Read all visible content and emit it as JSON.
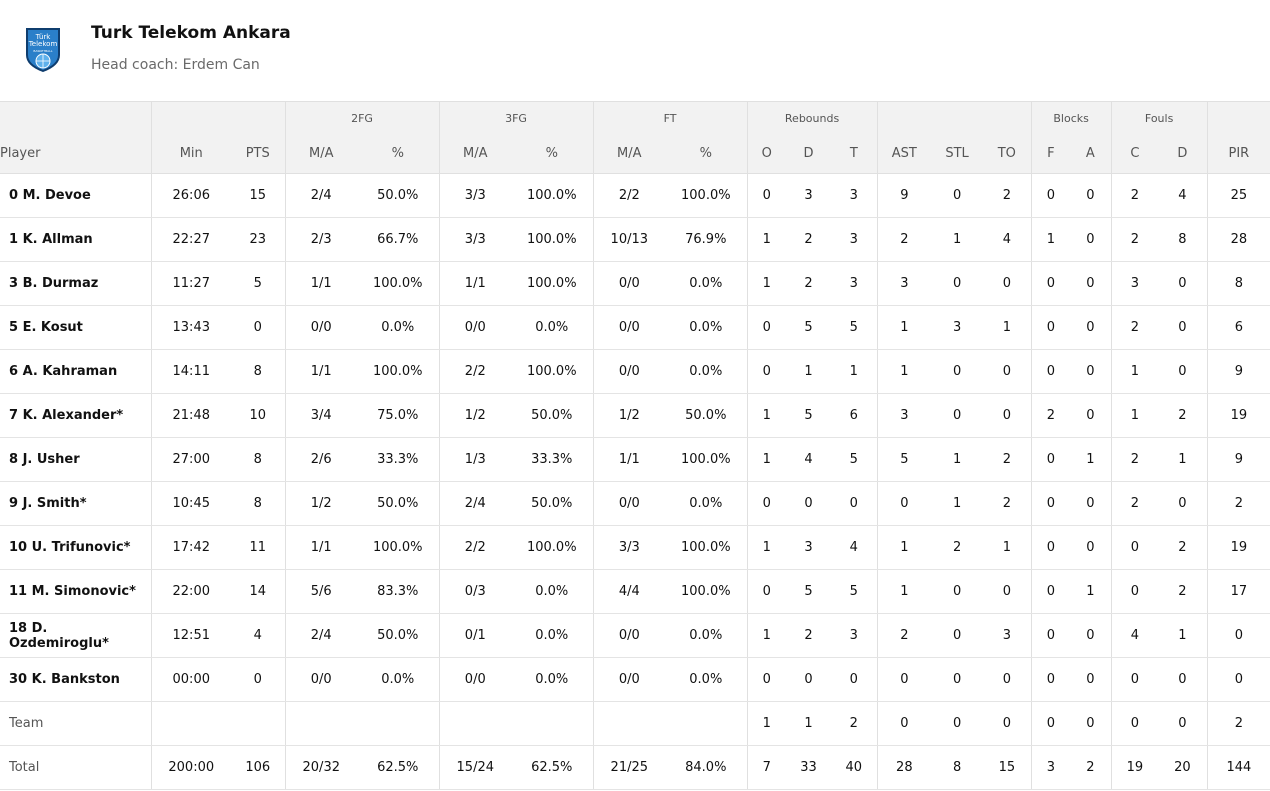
{
  "team": {
    "name": "Turk Telekom Ankara",
    "coach": "Head coach: Erdem Can",
    "logo_text_1": "Türk",
    "logo_text_2": "Telekom",
    "logo_text_3": "BASKETBALL"
  },
  "colors": {
    "header_bg": "#f2f2f2",
    "border": "#e0e0e0",
    "logo_blue": "#2a7fc9",
    "logo_dark": "#0f3d6e"
  },
  "groups": [
    "",
    "",
    "2FG",
    "3FG",
    "FT",
    "Rebounds",
    "",
    "Blocks",
    "Fouls",
    ""
  ],
  "columns": [
    "Player",
    "Min",
    "PTS",
    "M/A",
    "%",
    "M/A",
    "%",
    "M/A",
    "%",
    "O",
    "D",
    "T",
    "AST",
    "STL",
    "TO",
    "F",
    "A",
    "C",
    "D",
    "PIR"
  ],
  "rows": [
    [
      "0 M. Devoe",
      "26:06",
      "15",
      "2/4",
      "50.0%",
      "3/3",
      "100.0%",
      "2/2",
      "100.0%",
      "0",
      "3",
      "3",
      "9",
      "0",
      "2",
      "0",
      "0",
      "2",
      "4",
      "25"
    ],
    [
      "1 K. Allman",
      "22:27",
      "23",
      "2/3",
      "66.7%",
      "3/3",
      "100.0%",
      "10/13",
      "76.9%",
      "1",
      "2",
      "3",
      "2",
      "1",
      "4",
      "1",
      "0",
      "2",
      "8",
      "28"
    ],
    [
      "3 B. Durmaz",
      "11:27",
      "5",
      "1/1",
      "100.0%",
      "1/1",
      "100.0%",
      "0/0",
      "0.0%",
      "1",
      "2",
      "3",
      "3",
      "0",
      "0",
      "0",
      "0",
      "3",
      "0",
      "8"
    ],
    [
      "5 E. Kosut",
      "13:43",
      "0",
      "0/0",
      "0.0%",
      "0/0",
      "0.0%",
      "0/0",
      "0.0%",
      "0",
      "5",
      "5",
      "1",
      "3",
      "1",
      "0",
      "0",
      "2",
      "0",
      "6"
    ],
    [
      "6 A. Kahraman",
      "14:11",
      "8",
      "1/1",
      "100.0%",
      "2/2",
      "100.0%",
      "0/0",
      "0.0%",
      "0",
      "1",
      "1",
      "1",
      "0",
      "0",
      "0",
      "0",
      "1",
      "0",
      "9"
    ],
    [
      "7 K. Alexander*",
      "21:48",
      "10",
      "3/4",
      "75.0%",
      "1/2",
      "50.0%",
      "1/2",
      "50.0%",
      "1",
      "5",
      "6",
      "3",
      "0",
      "0",
      "2",
      "0",
      "1",
      "2",
      "19"
    ],
    [
      "8 J. Usher",
      "27:00",
      "8",
      "2/6",
      "33.3%",
      "1/3",
      "33.3%",
      "1/1",
      "100.0%",
      "1",
      "4",
      "5",
      "5",
      "1",
      "2",
      "0",
      "1",
      "2",
      "1",
      "9"
    ],
    [
      "9 J. Smith*",
      "10:45",
      "8",
      "1/2",
      "50.0%",
      "2/4",
      "50.0%",
      "0/0",
      "0.0%",
      "0",
      "0",
      "0",
      "0",
      "1",
      "2",
      "0",
      "0",
      "2",
      "0",
      "2"
    ],
    [
      "10 U. Trifunovic*",
      "17:42",
      "11",
      "1/1",
      "100.0%",
      "2/2",
      "100.0%",
      "3/3",
      "100.0%",
      "1",
      "3",
      "4",
      "1",
      "2",
      "1",
      "0",
      "0",
      "0",
      "2",
      "19"
    ],
    [
      "11 M. Simonovic*",
      "22:00",
      "14",
      "5/6",
      "83.3%",
      "0/3",
      "0.0%",
      "4/4",
      "100.0%",
      "0",
      "5",
      "5",
      "1",
      "0",
      "0",
      "0",
      "1",
      "0",
      "2",
      "17"
    ],
    [
      "18 D. Ozdemiroglu*",
      "12:51",
      "4",
      "2/4",
      "50.0%",
      "0/1",
      "0.0%",
      "0/0",
      "0.0%",
      "1",
      "2",
      "3",
      "2",
      "0",
      "3",
      "0",
      "0",
      "4",
      "1",
      "0"
    ],
    [
      "30 K. Bankston",
      "00:00",
      "0",
      "0/0",
      "0.0%",
      "0/0",
      "0.0%",
      "0/0",
      "0.0%",
      "0",
      "0",
      "0",
      "0",
      "0",
      "0",
      "0",
      "0",
      "0",
      "0",
      "0"
    ]
  ],
  "team_row": [
    "Team",
    "",
    "",
    "",
    "",
    "",
    "",
    "",
    "",
    "1",
    "1",
    "2",
    "0",
    "0",
    "0",
    "0",
    "0",
    "0",
    "0",
    "2"
  ],
  "total_row": [
    "Total",
    "200:00",
    "106",
    "20/32",
    "62.5%",
    "15/24",
    "62.5%",
    "21/25",
    "84.0%",
    "7",
    "33",
    "40",
    "28",
    "8",
    "15",
    "3",
    "2",
    "19",
    "20",
    "144"
  ]
}
